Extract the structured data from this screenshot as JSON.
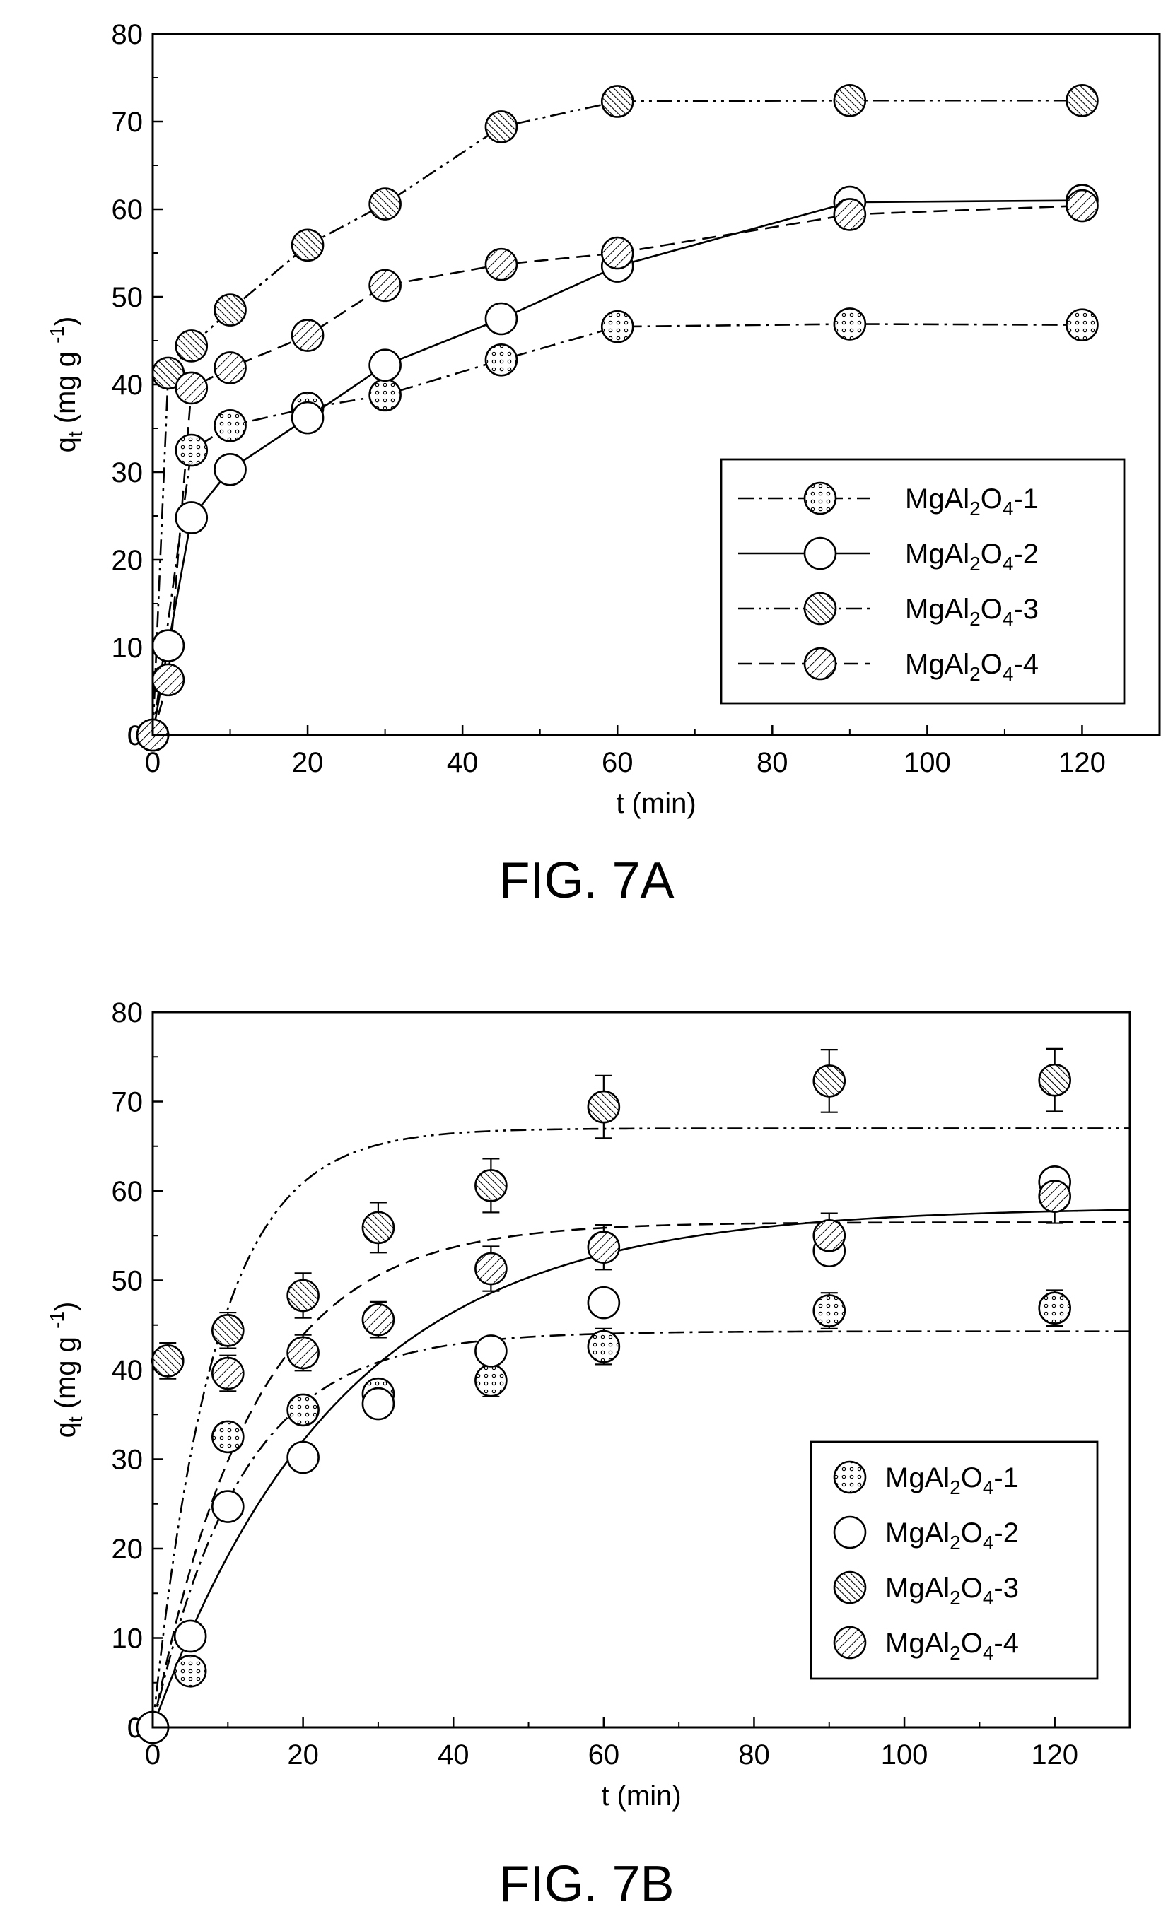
{
  "chart_data": [
    {
      "type": "line",
      "caption": "FIG. 7A",
      "xlabel": "t (min)",
      "ylabel_main": "q",
      "ylabel_sub": "t",
      "ylabel_unit_pre": "(mg g",
      "ylabel_unit_sup": "-1",
      "ylabel_unit_post": ")",
      "xlim": [
        0,
        130
      ],
      "ylim": [
        0,
        80
      ],
      "xticks": [
        0,
        20,
        40,
        60,
        80,
        100,
        120
      ],
      "yticks": [
        0,
        10,
        20,
        30,
        40,
        50,
        60,
        70,
        80
      ],
      "legend_position": "bottom-right",
      "series": [
        {
          "name_pre": "MgAl",
          "name_sub1": "2",
          "name_mid": "O",
          "name_sub2": "4",
          "name_post": "-1",
          "marker": "dots",
          "line": "dashdot",
          "x": [
            0,
            5,
            10,
            20,
            30,
            45,
            60,
            90,
            120
          ],
          "y": [
            0,
            32.5,
            35.3,
            37.3,
            38.8,
            42.8,
            46.6,
            46.9,
            46.8
          ]
        },
        {
          "name_pre": "MgAl",
          "name_sub1": "2",
          "name_mid": "O",
          "name_sub2": "4",
          "name_post": "-2",
          "marker": "open",
          "line": "solid",
          "x": [
            0,
            2,
            5,
            10,
            20,
            30,
            45,
            60,
            90,
            120
          ],
          "y": [
            0,
            10.2,
            24.8,
            30.3,
            36.2,
            42.2,
            47.5,
            53.5,
            60.8,
            61.0
          ]
        },
        {
          "name_pre": "MgAl",
          "name_sub1": "2",
          "name_mid": "O",
          "name_sub2": "4",
          "name_post": "-3",
          "marker": "hatch-dense",
          "line": "dashdotdot",
          "x": [
            0,
            2,
            5,
            10,
            20,
            30,
            45,
            60,
            90,
            120
          ],
          "y": [
            0,
            41.3,
            44.4,
            48.5,
            55.9,
            60.6,
            69.4,
            72.3,
            72.4,
            72.4
          ]
        },
        {
          "name_pre": "MgAl",
          "name_sub1": "2",
          "name_mid": "O",
          "name_sub2": "4",
          "name_post": "-4",
          "marker": "hatch",
          "line": "dashed",
          "x": [
            0,
            2,
            5,
            10,
            20,
            30,
            45,
            60,
            90,
            120
          ],
          "y": [
            0,
            6.3,
            39.6,
            41.9,
            45.6,
            51.3,
            53.7,
            55.0,
            59.4,
            60.4
          ]
        }
      ]
    },
    {
      "type": "scatter",
      "caption": "FIG. 7B",
      "xlabel": "t (min)",
      "ylabel_main": "q",
      "ylabel_sub": "t",
      "ylabel_unit_pre": "(mg g",
      "ylabel_unit_sup": "-1",
      "ylabel_unit_post": ")",
      "xlim": [
        0,
        130
      ],
      "ylim": [
        0,
        80
      ],
      "xticks": [
        0,
        20,
        40,
        60,
        80,
        100,
        120
      ],
      "yticks": [
        0,
        10,
        20,
        30,
        40,
        50,
        60,
        70,
        80
      ],
      "legend_position": "bottom-right",
      "series": [
        {
          "name_pre": "MgAl",
          "name_sub1": "2",
          "name_mid": "O",
          "name_sub2": "4",
          "name_post": "-1",
          "marker": "dots",
          "fit_line": "dashdot",
          "fit_qe": 44.3,
          "fit_k": 0.085,
          "x": [
            0,
            5,
            10,
            20,
            30,
            45,
            60,
            90,
            120
          ],
          "y": [
            0,
            6.3,
            32.5,
            35.5,
            37.3,
            38.8,
            42.6,
            46.6,
            46.9
          ],
          "err": [
            0,
            1.5,
            1.5,
            1.5,
            1.5,
            1.8,
            2.0,
            2.0,
            2.0
          ]
        },
        {
          "name_pre": "MgAl",
          "name_sub1": "2",
          "name_mid": "O",
          "name_sub2": "4",
          "name_post": "-2",
          "marker": "open",
          "fit_line": "solid",
          "fit_qe": 58.2,
          "fit_k": 0.04,
          "x": [
            0,
            5,
            10,
            20,
            30,
            45,
            60,
            90,
            120
          ],
          "y": [
            0,
            10.2,
            24.7,
            30.2,
            36.2,
            42.1,
            47.5,
            53.3,
            61.0
          ],
          "err": [
            0,
            1.5,
            1.5,
            1.5,
            1.5,
            1.5,
            1.5,
            1.5,
            1.5
          ]
        },
        {
          "name_pre": "MgAl",
          "name_sub1": "2",
          "name_mid": "O",
          "name_sub2": "4",
          "name_post": "-3",
          "marker": "hatch-dense",
          "fit_line": "dashdotdot",
          "fit_qe": 67.0,
          "fit_k": 0.12,
          "x": [
            2,
            10,
            20,
            30,
            45,
            60,
            90,
            120
          ],
          "y": [
            41.0,
            44.4,
            48.3,
            55.9,
            60.6,
            69.4,
            72.3,
            72.4
          ],
          "err": [
            2.0,
            2.0,
            2.5,
            2.8,
            3.0,
            3.5,
            3.5,
            3.5
          ]
        },
        {
          "name_pre": "MgAl",
          "name_sub1": "2",
          "name_mid": "O",
          "name_sub2": "4",
          "name_post": "-4",
          "marker": "hatch",
          "fit_line": "dashed",
          "fit_qe": 56.5,
          "fit_k": 0.075,
          "x": [
            10,
            20,
            30,
            45,
            60,
            90,
            120
          ],
          "y": [
            39.6,
            41.9,
            45.6,
            51.3,
            53.7,
            55.0,
            59.4
          ],
          "err": [
            2.0,
            2.0,
            2.0,
            2.5,
            2.5,
            2.5,
            3.0
          ]
        }
      ]
    }
  ]
}
